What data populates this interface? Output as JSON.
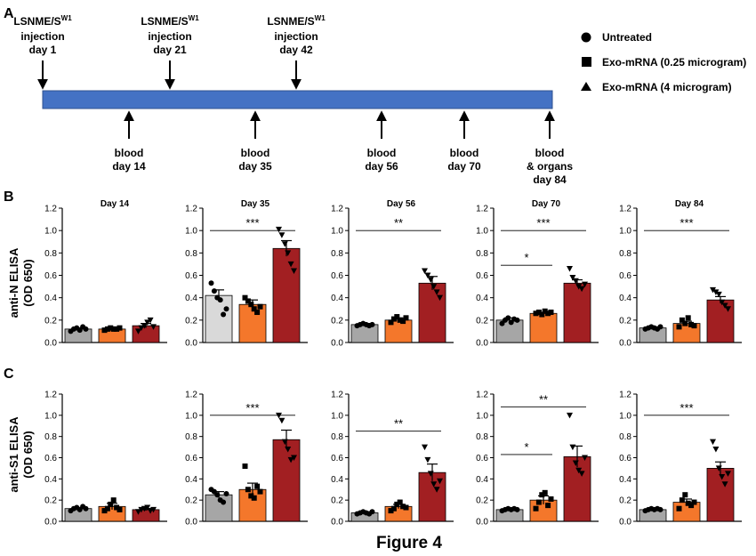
{
  "figure_title": "Figure 4",
  "panel_labels": {
    "a": "A",
    "b": "B",
    "c": "C"
  },
  "row_labels": {
    "b": [
      "anti-N ELISA",
      "(OD 650)"
    ],
    "c": [
      "anti-S1 ELISA",
      "(OD 650)"
    ]
  },
  "legend": [
    {
      "label": "Untreated",
      "marker": "circle"
    },
    {
      "label": "Exo-mRNA (0.25 microgram)",
      "marker": "square"
    },
    {
      "label": "Exo-mRNA (4 microgram)",
      "marker": "triangle"
    }
  ],
  "timeline": {
    "injections": [
      {
        "line1": "LSNME/S",
        "sup": "W1",
        "line2": "injection",
        "line3": "day 1"
      },
      {
        "line1": "LSNME/S",
        "sup": "W1",
        "line2": "injection",
        "line3": "day 21"
      },
      {
        "line1": "LSNME/S",
        "sup": "W1",
        "line2": "injection",
        "line3": "day 42"
      }
    ],
    "bleeds": [
      {
        "lines": [
          "blood",
          "day 14"
        ]
      },
      {
        "lines": [
          "blood",
          "day 35"
        ]
      },
      {
        "lines": [
          "blood",
          "day 56"
        ]
      },
      {
        "lines": [
          "blood",
          "day 70"
        ]
      },
      {
        "lines": [
          "blood",
          "& organs",
          "day 84"
        ]
      }
    ]
  },
  "colors": {
    "timeline_bar": "#4472C4",
    "timeline_border": "#2F528F",
    "untreated": "#a6a6a6",
    "untreated_day35": "#d9d9d9",
    "low_dose": "#f4772b",
    "high_dose": "#a21f22"
  },
  "chart_data": [
    {
      "type": "bar",
      "row": "B",
      "title": "Day 14",
      "ylabel": "anti-N ELISA (OD 650)",
      "ylim": [
        0,
        1.2
      ],
      "yticks": [
        "0.0",
        "0.2",
        "0.4",
        "0.6",
        "0.8",
        "1.0",
        "1.2"
      ],
      "categories": [
        "Untreated",
        "Exo-mRNA (0.25 microgram)",
        "Exo-mRNA (4 microgram)"
      ],
      "values": [
        0.12,
        0.12,
        0.15
      ],
      "errors": [
        0.01,
        0.01,
        0.02
      ],
      "points": [
        [
          0.1,
          0.12,
          0.13,
          0.11,
          0.14,
          0.12
        ],
        [
          0.11,
          0.12,
          0.13,
          0.12,
          0.12,
          0.13
        ],
        [
          0.1,
          0.13,
          0.15,
          0.18,
          0.2,
          0.14
        ]
      ],
      "significance": []
    },
    {
      "type": "bar",
      "row": "B",
      "title": "Day 35",
      "ylabel": "anti-N ELISA (OD 650)",
      "ylim": [
        0,
        1.2
      ],
      "yticks": [
        "0.0",
        "0.2",
        "0.4",
        "0.6",
        "0.8",
        "1.0",
        "1.2"
      ],
      "categories": [
        "Untreated",
        "Exo-mRNA (0.25 microgram)",
        "Exo-mRNA (4 microgram)"
      ],
      "values": [
        0.42,
        0.34,
        0.84
      ],
      "errors": [
        0.05,
        0.04,
        0.07
      ],
      "points": [
        [
          0.53,
          0.46,
          0.4,
          0.38,
          0.25,
          0.3
        ],
        [
          0.4,
          0.37,
          0.34,
          0.3,
          0.27,
          0.32
        ],
        [
          1.01,
          0.96,
          0.88,
          0.8,
          0.7,
          0.64
        ]
      ],
      "significance": [
        {
          "from": 0,
          "to": 2,
          "label": "***"
        }
      ]
    },
    {
      "type": "bar",
      "row": "B",
      "title": "Day 56",
      "ylabel": "anti-N ELISA (OD 650)",
      "ylim": [
        0,
        1.2
      ],
      "yticks": [
        "0.0",
        "0.2",
        "0.4",
        "0.6",
        "0.8",
        "1.0",
        "1.2"
      ],
      "categories": [
        "Untreated",
        "Exo-mRNA (0.25 microgram)",
        "Exo-mRNA (4 microgram)"
      ],
      "values": [
        0.16,
        0.2,
        0.53
      ],
      "errors": [
        0.01,
        0.02,
        0.06
      ],
      "points": [
        [
          0.15,
          0.16,
          0.17,
          0.16,
          0.15,
          0.16
        ],
        [
          0.18,
          0.21,
          0.23,
          0.2,
          0.19,
          0.22
        ],
        [
          0.64,
          0.6,
          0.56,
          0.5,
          0.45,
          0.4
        ]
      ],
      "significance": [
        {
          "from": 0,
          "to": 2,
          "label": "**"
        }
      ]
    },
    {
      "type": "bar",
      "row": "B",
      "title": "Day 70",
      "ylabel": "anti-N ELISA (OD 650)",
      "ylim": [
        0,
        1.2
      ],
      "yticks": [
        "0.0",
        "0.2",
        "0.4",
        "0.6",
        "0.8",
        "1.0",
        "1.2"
      ],
      "categories": [
        "Untreated",
        "Exo-mRNA (0.25 microgram)",
        "Exo-mRNA (4 microgram)"
      ],
      "values": [
        0.2,
        0.26,
        0.53
      ],
      "errors": [
        0.02,
        0.01,
        0.03
      ],
      "points": [
        [
          0.17,
          0.2,
          0.22,
          0.18,
          0.21,
          0.2
        ],
        [
          0.26,
          0.27,
          0.25,
          0.28,
          0.26,
          0.27
        ],
        [
          0.66,
          0.58,
          0.55,
          0.5,
          0.48,
          0.52
        ]
      ],
      "significance": [
        {
          "from": 0,
          "to": 1,
          "label": "*"
        },
        {
          "from": 0,
          "to": 2,
          "label": "***"
        }
      ]
    },
    {
      "type": "bar",
      "row": "B",
      "title": "Day 84",
      "ylabel": "anti-N ELISA (OD 650)",
      "ylim": [
        0,
        1.2
      ],
      "yticks": [
        "0.0",
        "0.2",
        "0.4",
        "0.6",
        "0.8",
        "1.0",
        "1.2"
      ],
      "categories": [
        "Untreated",
        "Exo-mRNA (0.25 microgram)",
        "Exo-mRNA (4 microgram)"
      ],
      "values": [
        0.13,
        0.17,
        0.38
      ],
      "errors": [
        0.01,
        0.02,
        0.03
      ],
      "points": [
        [
          0.12,
          0.13,
          0.14,
          0.13,
          0.12,
          0.14
        ],
        [
          0.14,
          0.2,
          0.17,
          0.22,
          0.16,
          0.15
        ],
        [
          0.47,
          0.45,
          0.43,
          0.36,
          0.33,
          0.3
        ]
      ],
      "significance": [
        {
          "from": 0,
          "to": 2,
          "label": "***"
        }
      ]
    },
    {
      "type": "bar",
      "row": "C",
      "title": "",
      "ylabel": "anti-S1 ELISA (OD 650)",
      "ylim": [
        0,
        1.2
      ],
      "yticks": [
        "0.0",
        "0.2",
        "0.4",
        "0.6",
        "0.8",
        "1.0",
        "1.2"
      ],
      "categories": [
        "Untreated",
        "Exo-mRNA (0.25 microgram)",
        "Exo-mRNA (4 microgram)"
      ],
      "values": [
        0.12,
        0.14,
        0.11
      ],
      "errors": [
        0.01,
        0.03,
        0.01
      ],
      "points": [
        [
          0.1,
          0.12,
          0.13,
          0.11,
          0.14,
          0.12
        ],
        [
          0.1,
          0.12,
          0.16,
          0.2,
          0.13,
          0.11
        ],
        [
          0.09,
          0.11,
          0.12,
          0.13,
          0.1,
          0.11
        ]
      ],
      "significance": []
    },
    {
      "type": "bar",
      "row": "C",
      "title": "",
      "ylabel": "anti-S1 ELISA (OD 650)",
      "ylim": [
        0,
        1.2
      ],
      "yticks": [
        "0.0",
        "0.2",
        "0.4",
        "0.6",
        "0.8",
        "1.0",
        "1.2"
      ],
      "categories": [
        "Untreated",
        "Exo-mRNA (0.25 microgram)",
        "Exo-mRNA (4 microgram)"
      ],
      "values": [
        0.25,
        0.3,
        0.77
      ],
      "errors": [
        0.03,
        0.06,
        0.09
      ],
      "points": [
        [
          0.3,
          0.28,
          0.25,
          0.2,
          0.18,
          0.26
        ],
        [
          0.52,
          0.3,
          0.24,
          0.22,
          0.33,
          0.28
        ],
        [
          1.0,
          0.95,
          0.75,
          0.68,
          0.58,
          0.6
        ]
      ],
      "significance": [
        {
          "from": 0,
          "to": 2,
          "label": "***"
        }
      ]
    },
    {
      "type": "bar",
      "row": "C",
      "title": "",
      "ylabel": "anti-S1 ELISA (OD 650)",
      "ylim": [
        0,
        1.2
      ],
      "yticks": [
        "0.0",
        "0.2",
        "0.4",
        "0.6",
        "0.8",
        "1.0",
        "1.2"
      ],
      "categories": [
        "Untreated",
        "Exo-mRNA (0.25 microgram)",
        "Exo-mRNA (4 microgram)"
      ],
      "values": [
        0.08,
        0.14,
        0.46
      ],
      "errors": [
        0.01,
        0.02,
        0.08
      ],
      "points": [
        [
          0.07,
          0.08,
          0.09,
          0.08,
          0.07,
          0.09
        ],
        [
          0.1,
          0.12,
          0.16,
          0.18,
          0.14,
          0.13
        ],
        [
          0.7,
          0.58,
          0.45,
          0.35,
          0.3,
          0.38
        ]
      ],
      "significance": [
        {
          "from": 0,
          "to": 2,
          "label": "**"
        }
      ]
    },
    {
      "type": "bar",
      "row": "C",
      "title": "",
      "ylabel": "anti-S1 ELISA (OD 650)",
      "ylim": [
        0,
        1.2
      ],
      "yticks": [
        "0.0",
        "0.2",
        "0.4",
        "0.6",
        "0.8",
        "1.0",
        "1.2"
      ],
      "categories": [
        "Untreated",
        "Exo-mRNA (0.25 microgram)",
        "Exo-mRNA (4 microgram)"
      ],
      "values": [
        0.11,
        0.2,
        0.61
      ],
      "errors": [
        0.01,
        0.04,
        0.1
      ],
      "points": [
        [
          0.1,
          0.11,
          0.12,
          0.11,
          0.12,
          0.11
        ],
        [
          0.12,
          0.18,
          0.25,
          0.27,
          0.15,
          0.21
        ],
        [
          1.0,
          0.7,
          0.55,
          0.48,
          0.45,
          0.6
        ]
      ],
      "significance": [
        {
          "from": 0,
          "to": 1,
          "label": "*"
        },
        {
          "from": 0,
          "to": 2,
          "label": "**"
        }
      ]
    },
    {
      "type": "bar",
      "row": "C",
      "title": "",
      "ylabel": "anti-S1 ELISA (OD 650)",
      "ylim": [
        0,
        1.2
      ],
      "yticks": [
        "0.0",
        "0.2",
        "0.4",
        "0.6",
        "0.8",
        "1.0",
        "1.2"
      ],
      "categories": [
        "Untreated",
        "Exo-mRNA (0.25 microgram)",
        "Exo-mRNA (4 microgram)"
      ],
      "values": [
        0.11,
        0.18,
        0.5
      ],
      "errors": [
        0.01,
        0.03,
        0.06
      ],
      "points": [
        [
          0.1,
          0.11,
          0.12,
          0.11,
          0.12,
          0.11
        ],
        [
          0.12,
          0.2,
          0.25,
          0.17,
          0.15,
          0.18
        ],
        [
          0.75,
          0.68,
          0.5,
          0.42,
          0.35,
          0.45
        ]
      ],
      "significance": [
        {
          "from": 0,
          "to": 2,
          "label": "***"
        }
      ]
    }
  ]
}
